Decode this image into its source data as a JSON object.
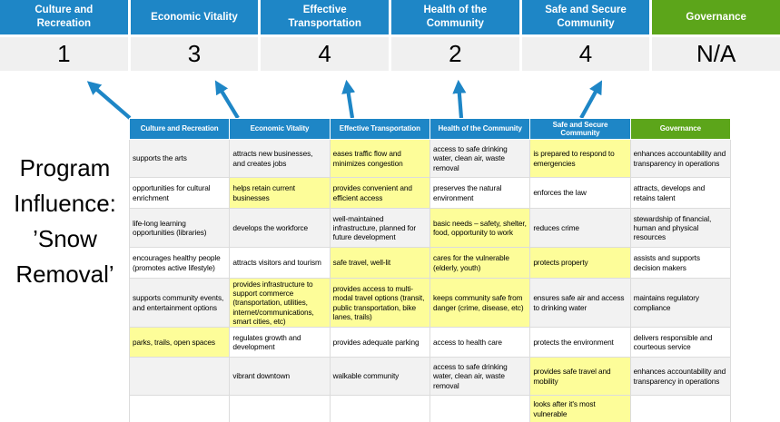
{
  "page": {
    "title": "Program Influence: ’Snow Removal’"
  },
  "colors": {
    "header_blue": "#1E86C6",
    "governance_green": "#5CA51A",
    "highlight_yellow": "#FDFD99",
    "band_gray": "#F2F2F2",
    "score_bg": "#F0F0F0",
    "grid_line": "#DCDCDC",
    "arrow_blue": "#1E86C6"
  },
  "pillars": [
    {
      "name": "Culture and Recreation",
      "score": "1",
      "theme": "blue"
    },
    {
      "name": "Economic Vitality",
      "score": "3",
      "theme": "blue"
    },
    {
      "name": "Effective Transportation",
      "score": "4",
      "theme": "blue"
    },
    {
      "name": "Health of the Community",
      "score": "2",
      "theme": "blue"
    },
    {
      "name": "Safe and Secure Community",
      "score": "4",
      "theme": "blue"
    },
    {
      "name": "Governance",
      "score": "N/A",
      "theme": "green"
    }
  ],
  "matrix": {
    "headers": [
      {
        "label": "Culture and Recreation",
        "theme": "blue"
      },
      {
        "label": "Economic Vitality",
        "theme": "blue"
      },
      {
        "label": "Effective Transportation",
        "theme": "blue"
      },
      {
        "label": "Health of the Community",
        "theme": "blue"
      },
      {
        "label": "Safe and Secure Community",
        "theme": "blue"
      },
      {
        "label": "Governance",
        "theme": "green"
      }
    ],
    "rows": [
      [
        {
          "text": "supports the arts",
          "highlight": false
        },
        {
          "text": "attracts new businesses, and creates jobs",
          "highlight": false
        },
        {
          "text": "eases traffic flow and minimizes congestion",
          "highlight": true
        },
        {
          "text": "access to safe drinking water, clean air, waste removal",
          "highlight": false
        },
        {
          "text": "is prepared to respond to emergencies",
          "highlight": true
        },
        {
          "text": "enhances accountability and transparency in operations",
          "highlight": false
        }
      ],
      [
        {
          "text": "opportunities for cultural enrichment",
          "highlight": false
        },
        {
          "text": "helps retain current businesses",
          "highlight": true
        },
        {
          "text": "provides convenient and efficient access",
          "highlight": true
        },
        {
          "text": "preserves the natural environment",
          "highlight": false
        },
        {
          "text": "enforces the law",
          "highlight": false
        },
        {
          "text": "attracts, develops and retains talent",
          "highlight": false
        }
      ],
      [
        {
          "text": "life-long learning opportunities (libraries)",
          "highlight": false
        },
        {
          "text": "develops the workforce",
          "highlight": false
        },
        {
          "text": "well-maintained infrastructure, planned for future development",
          "highlight": false
        },
        {
          "text": "basic needs – safety, shelter, food, opportunity to work",
          "highlight": true
        },
        {
          "text": "reduces crime",
          "highlight": false
        },
        {
          "text": "stewardship of financial, human and physical resources",
          "highlight": false
        }
      ],
      [
        {
          "text": "encourages healthy people (promotes active lifestyle)",
          "highlight": false
        },
        {
          "text": "attracts visitors and tourism",
          "highlight": false
        },
        {
          "text": "safe travel, well-lit",
          "highlight": true
        },
        {
          "text": "cares for the vulnerable (elderly, youth)",
          "highlight": true
        },
        {
          "text": "protects property",
          "highlight": true
        },
        {
          "text": "assists and supports decision makers",
          "highlight": false
        }
      ],
      [
        {
          "text": "supports community events, and entertainment options",
          "highlight": false
        },
        {
          "text": "provides infrastructure to support commerce (transportation, utilities, internet/communications, smart cities, etc)",
          "highlight": true
        },
        {
          "text": "provides access to multi-modal travel options (transit, public transportation, bike lanes, trails)",
          "highlight": true
        },
        {
          "text": "keeps community safe from danger (crime, disease, etc)",
          "highlight": true
        },
        {
          "text": "ensures safe air and access to drinking water",
          "highlight": false
        },
        {
          "text": "maintains regulatory compliance",
          "highlight": false
        }
      ],
      [
        {
          "text": "parks, trails, open spaces",
          "highlight": true
        },
        {
          "text": "regulates growth and development",
          "highlight": false
        },
        {
          "text": "provides adequate parking",
          "highlight": false
        },
        {
          "text": "access to health care",
          "highlight": false
        },
        {
          "text": "protects the environment",
          "highlight": false
        },
        {
          "text": "delivers responsible and courteous service",
          "highlight": false
        }
      ],
      [
        {
          "text": "",
          "highlight": false
        },
        {
          "text": "vibrant downtown",
          "highlight": false
        },
        {
          "text": "walkable community",
          "highlight": false
        },
        {
          "text": "access to safe drinking water, clean air, waste removal",
          "highlight": false
        },
        {
          "text": "provides safe travel and mobility",
          "highlight": true
        },
        {
          "text": "enhances accountability and transparency in operations",
          "highlight": false
        }
      ],
      [
        {
          "text": "",
          "highlight": false
        },
        {
          "text": "",
          "highlight": false
        },
        {
          "text": "",
          "highlight": false
        },
        {
          "text": "",
          "highlight": false
        },
        {
          "text": "looks after it's most vulnerable",
          "highlight": true
        },
        {
          "text": "",
          "highlight": false
        }
      ]
    ]
  }
}
